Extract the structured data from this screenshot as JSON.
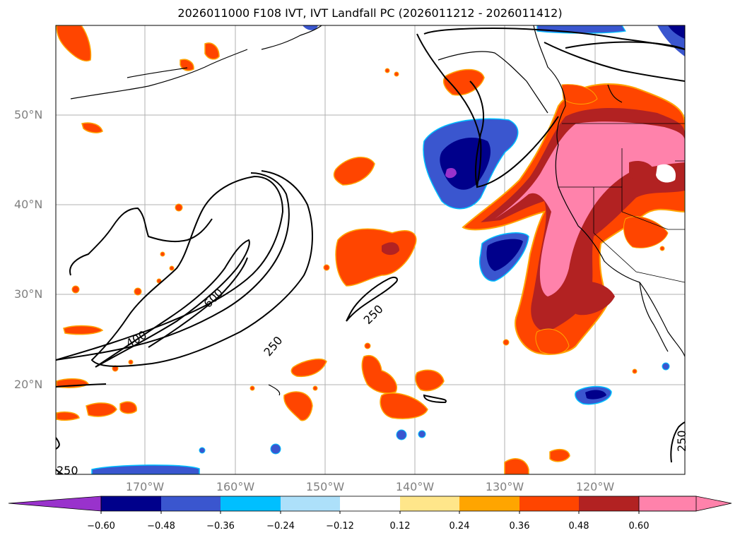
{
  "title": "2026011000 F108 IVT, IVT Landfall PC (2026011212 - 2026011412)",
  "map": {
    "projection": "lat-lon",
    "lon_range": [
      -180,
      -110
    ],
    "lat_range": [
      10,
      60
    ],
    "gridlines": true,
    "lat_ticks": [
      "50°N",
      "40°N",
      "30°N",
      "20°N"
    ],
    "lon_ticks": [
      "170°W",
      "160°W",
      "150°W",
      "140°W",
      "130°W",
      "120°W"
    ],
    "contour_labels": [
      "600",
      "400",
      "250",
      "250",
      "250",
      "250"
    ]
  },
  "colorbar": {
    "orientation": "horizontal",
    "extend": "both",
    "ticks": [
      "−0.60",
      "−0.48",
      "−0.36",
      "−0.24",
      "−0.12",
      "0.12",
      "0.24",
      "0.36",
      "0.48",
      "0.60"
    ],
    "colors": [
      "#9932cc",
      "#00008b",
      "#3a56cf",
      "#00bfff",
      "#ade0fa",
      "#ffffff",
      "#ffe68a",
      "#ffa500",
      "#ff4500",
      "#b22222",
      "#ff82ab"
    ]
  }
}
